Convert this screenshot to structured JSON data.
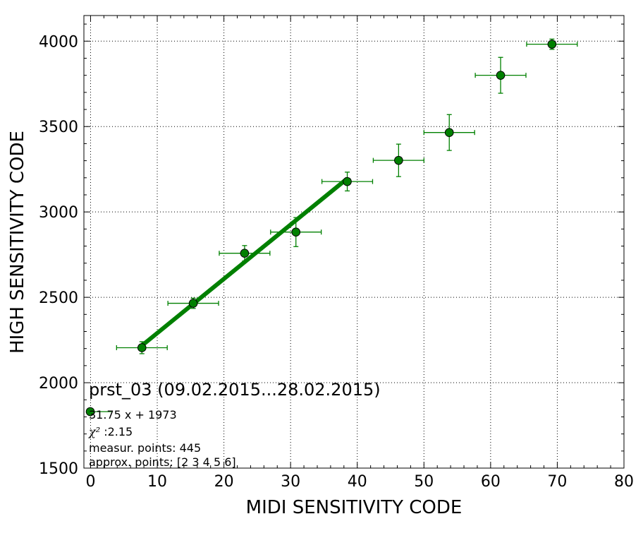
{
  "chart_data": {
    "type": "scatter",
    "xlabel": "MIDI SENSITIVITY CODE",
    "ylabel": "HIGH SENSITIVITY CODE",
    "xlim": [
      -1,
      80
    ],
    "ylim": [
      1500,
      4150
    ],
    "x_ticks": [
      0,
      10,
      20,
      30,
      40,
      50,
      60,
      70,
      80
    ],
    "y_ticks": [
      1500,
      2000,
      2500,
      3000,
      3500,
      4000
    ],
    "x_tick_labels": [
      "0",
      "10",
      "20",
      "30",
      "40",
      "50",
      "60",
      "70",
      "80"
    ],
    "y_tick_labels": [
      "1500",
      "2000",
      "2500",
      "3000",
      "3500",
      "4000"
    ],
    "grid": true,
    "series": [
      {
        "color": "#008000",
        "marker": "circle",
        "points": [
          {
            "x": 7.7,
            "y": 2205,
            "xerr": 3.8,
            "yerr": 35
          },
          {
            "x": 15.4,
            "y": 2465,
            "xerr": 3.8,
            "yerr": 30
          },
          {
            "x": 23.1,
            "y": 2758,
            "xerr": 3.8,
            "yerr": 45
          },
          {
            "x": 30.8,
            "y": 2882,
            "xerr": 3.8,
            "yerr": 85
          },
          {
            "x": 38.5,
            "y": 3178,
            "xerr": 3.8,
            "yerr": 55
          },
          {
            "x": 46.2,
            "y": 3302,
            "xerr": 3.8,
            "yerr": 95
          },
          {
            "x": 53.8,
            "y": 3465,
            "xerr": 3.8,
            "yerr": 105
          },
          {
            "x": 61.5,
            "y": 3800,
            "xerr": 3.8,
            "yerr": 105
          },
          {
            "x": 69.2,
            "y": 3982,
            "xerr": 3.8,
            "yerr": 30
          }
        ]
      }
    ],
    "fit_line": {
      "color": "#008000",
      "slope": 31.75,
      "intercept": 1973,
      "x_range": [
        7.7,
        38.5
      ]
    },
    "legend": {
      "title": "prst_03 (09.02.2015...28.02.2015)",
      "entry_label": "31.75 x + 1973",
      "chi2_symbol": "χ²",
      "chi2_value": " :2.15",
      "measur_points": "measur. points: 445",
      "approx_points": "approx. points: [2 3 4 5 6]"
    }
  }
}
